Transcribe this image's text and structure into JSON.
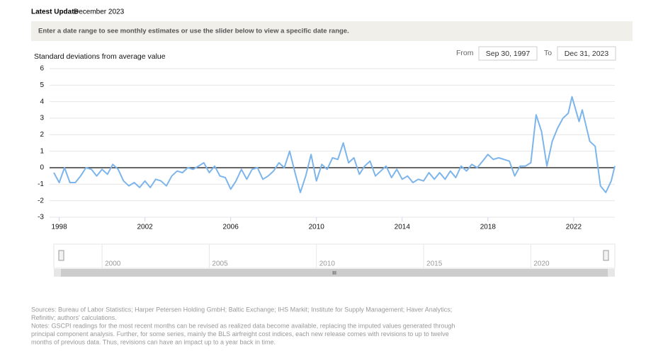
{
  "header": {
    "label": "Latest Update",
    "value": "December 2023",
    "banner": "Enter a date range to see monthly estimates or use the slider below to view a specific date range."
  },
  "range": {
    "from_label": "From",
    "from": "Sep 30, 1997",
    "to_label": "To",
    "to": "Dec 31, 2023"
  },
  "chart_data": {
    "type": "line",
    "y_label": "Standard deviations from average value",
    "color": "#7cb5ec",
    "x": [
      1997.75,
      1998.0,
      1998.25,
      1998.5,
      1998.75,
      1999.0,
      1999.25,
      1999.5,
      1999.75,
      2000.0,
      2000.25,
      2000.5,
      2000.75,
      2001.0,
      2001.25,
      2001.5,
      2001.75,
      2002.0,
      2002.25,
      2002.5,
      2002.75,
      2003.0,
      2003.25,
      2003.5,
      2003.75,
      2004.0,
      2004.25,
      2004.5,
      2004.75,
      2005.0,
      2005.25,
      2005.5,
      2005.75,
      2006.0,
      2006.25,
      2006.5,
      2006.75,
      2007.0,
      2007.25,
      2007.5,
      2007.75,
      2008.0,
      2008.25,
      2008.5,
      2008.75,
      2009.0,
      2009.25,
      2009.5,
      2009.75,
      2010.0,
      2010.25,
      2010.5,
      2010.75,
      2011.0,
      2011.25,
      2011.5,
      2011.75,
      2012.0,
      2012.25,
      2012.5,
      2012.75,
      2013.0,
      2013.25,
      2013.5,
      2013.75,
      2014.0,
      2014.25,
      2014.5,
      2014.75,
      2015.0,
      2015.25,
      2015.5,
      2015.75,
      2016.0,
      2016.25,
      2016.5,
      2016.75,
      2017.0,
      2017.25,
      2017.5,
      2017.75,
      2018.0,
      2018.25,
      2018.5,
      2018.75,
      2019.0,
      2019.25,
      2019.5,
      2019.75,
      2020.0,
      2020.25,
      2020.5,
      2020.75,
      2021.0,
      2021.25,
      2021.5,
      2021.75,
      2021.92,
      2022.25,
      2022.4,
      2022.75,
      2023.0,
      2023.25,
      2023.5,
      2023.75,
      2023.92
    ],
    "values": [
      -0.3,
      -0.9,
      0.0,
      -0.9,
      -0.9,
      -0.5,
      0.0,
      -0.1,
      -0.5,
      -0.1,
      -0.4,
      0.2,
      -0.1,
      -0.8,
      -1.1,
      -0.9,
      -1.2,
      -0.8,
      -1.2,
      -0.7,
      -0.8,
      -1.1,
      -0.5,
      -0.2,
      -0.3,
      0.0,
      -0.1,
      0.1,
      0.3,
      -0.3,
      0.1,
      -0.5,
      -0.6,
      -1.3,
      -0.8,
      -0.1,
      -0.7,
      -0.1,
      0.0,
      -0.7,
      -0.5,
      -0.2,
      0.3,
      0.0,
      1.0,
      -0.3,
      -1.5,
      -0.5,
      0.8,
      -0.8,
      0.2,
      -0.1,
      0.6,
      0.5,
      1.5,
      0.3,
      0.6,
      -0.4,
      0.1,
      0.4,
      -0.5,
      -0.2,
      0.1,
      -0.6,
      -0.1,
      -0.7,
      -0.5,
      -0.9,
      -0.7,
      -0.8,
      -0.3,
      -0.7,
      -0.3,
      -0.7,
      -0.2,
      -0.6,
      0.1,
      -0.2,
      0.2,
      0.0,
      0.4,
      0.8,
      0.5,
      0.6,
      0.5,
      0.4,
      -0.5,
      0.1,
      0.1,
      0.3,
      3.2,
      2.2,
      0.1,
      1.6,
      2.4,
      3.0,
      3.3,
      4.3,
      2.8,
      3.5,
      1.6,
      1.3,
      -1.1,
      -1.5,
      -0.8,
      0.1
    ],
    "xlim": [
      1997.75,
      2023.92
    ],
    "xticks": [
      1998,
      2002,
      2006,
      2010,
      2014,
      2018,
      2022
    ],
    "ylim": [
      -3,
      6
    ],
    "yticks": [
      -3,
      -2,
      -1,
      0,
      1,
      2,
      3,
      4,
      5,
      6
    ],
    "grid": true,
    "navigator": {
      "xticks": [
        2000,
        2005,
        2010,
        2015,
        2020
      ],
      "scroll_label": "III"
    }
  },
  "footer": {
    "sources": [
      "Sources: Bureau of Labor Statistics; Harper Petersen Holding GmbH; Baltic Exchange; IHS Markit; Institute for Supply Management; Haver Analytics;",
      "Refinitiv; authors' calculations."
    ],
    "notes": [
      "Notes: GSCPI readings for the most recent months can be revised as realized data become available, replacing the imputed values generated through",
      "principal component analysis. Further, for some series, mainly the BLS airfreight cost indices, each new release comes with revisions to up to twelve",
      "months of previous data. Thus, revisions can have an impact up to a year back in time."
    ]
  }
}
